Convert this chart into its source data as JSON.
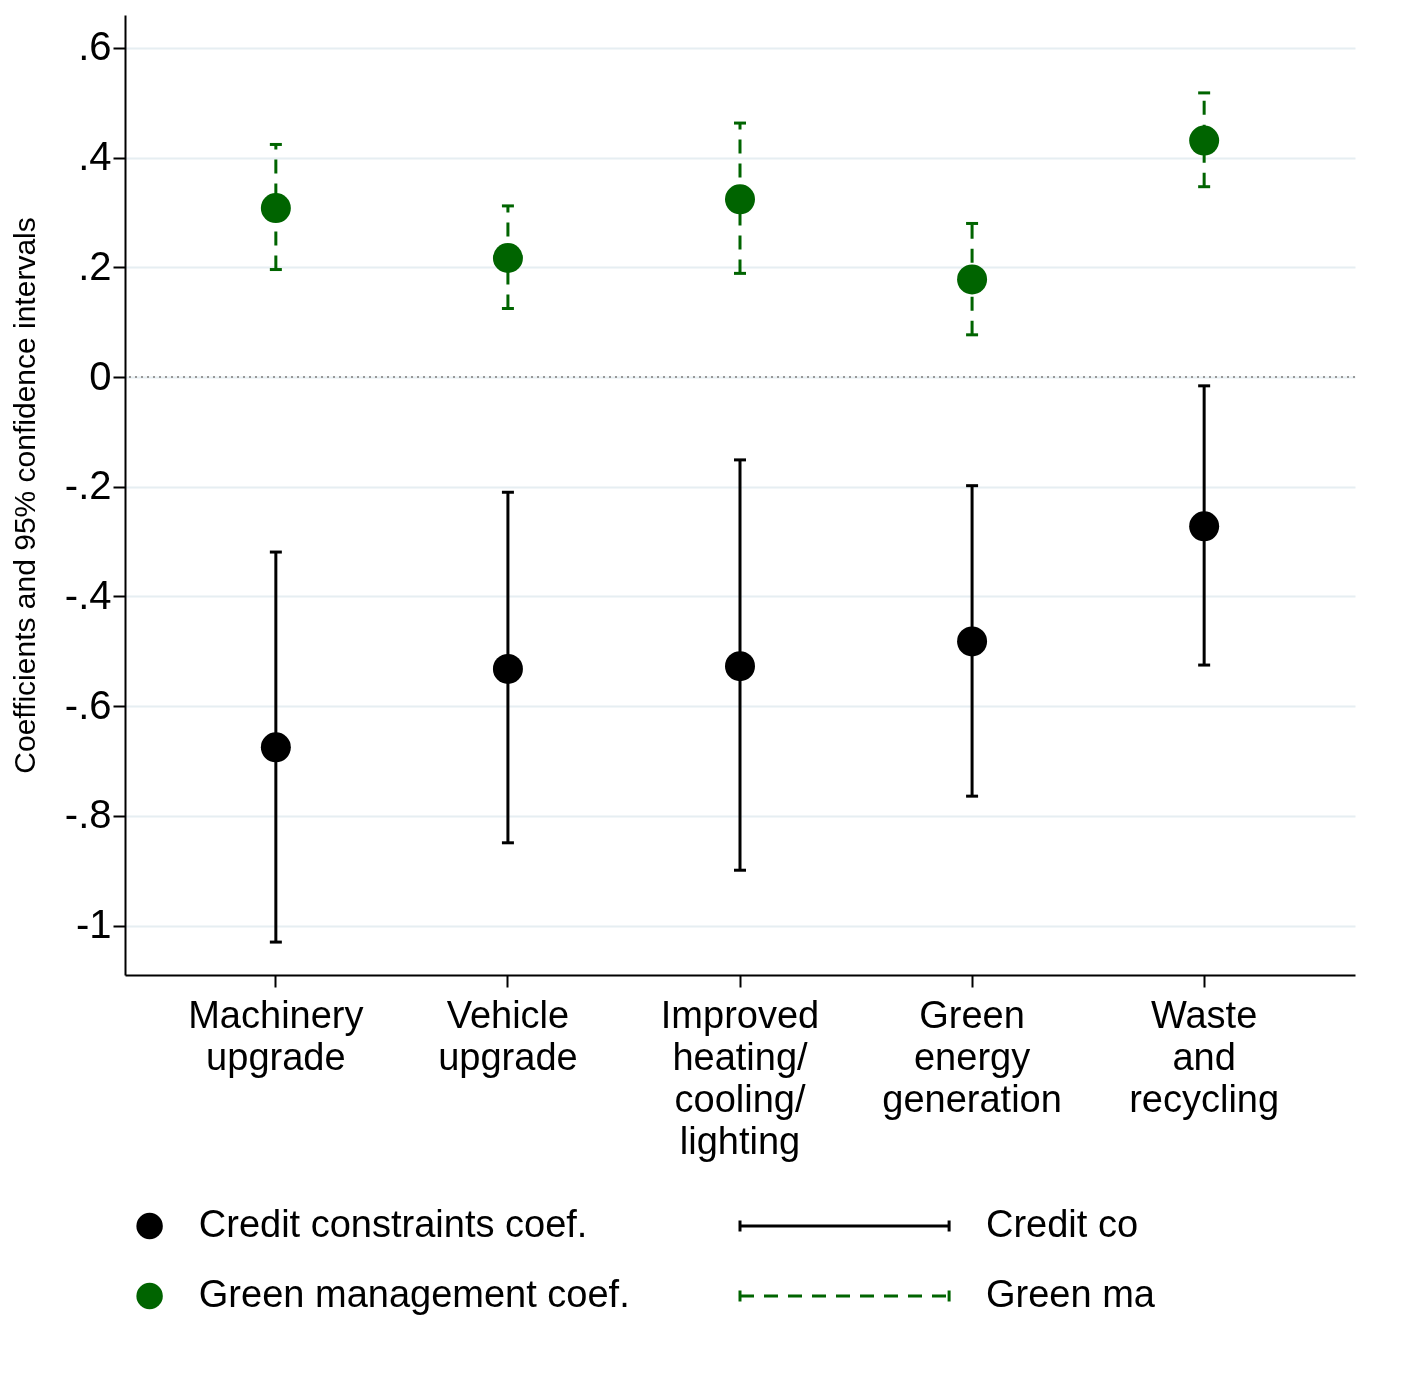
{
  "chart_data": {
    "type": "scatter",
    "ylabel": "Coefficients and 95% confidence intervals",
    "categories": [
      "Machinery upgrade",
      "Vehicle upgrade",
      "Improved heating/ cooling/ lighting",
      "Green energy generation",
      "Waste and recycling"
    ],
    "series": [
      {
        "name": "Credit constraints coef.",
        "color": "#000000",
        "line_style": "solid",
        "values": [
          -0.675,
          -0.532,
          -0.527,
          -0.482,
          -0.272
        ],
        "errors": [
          [
            -1.03,
            -0.319
          ],
          [
            -0.849,
            -0.21
          ],
          [
            -0.899,
            -0.151
          ],
          [
            -0.764,
            -0.198
          ],
          [
            -0.525,
            -0.016
          ]
        ]
      },
      {
        "name": "Green management coef.",
        "color": "#006400",
        "line_style": "dashed",
        "values": [
          0.308,
          0.217,
          0.324,
          0.178,
          0.431
        ],
        "errors": [
          [
            0.196,
            0.424
          ],
          [
            0.125,
            0.312
          ],
          [
            0.189,
            0.463
          ],
          [
            0.077,
            0.28
          ],
          [
            0.347,
            0.518
          ]
        ]
      }
    ],
    "annotations": [
      "Credit co",
      "Green ma"
    ],
    "ylim": [
      -1.09,
      0.66
    ],
    "yticks": [
      {
        "value": 0.6,
        "label": ".6"
      },
      {
        "value": 0.4,
        "label": ".4"
      },
      {
        "value": 0.2,
        "label": ".2"
      },
      0,
      {
        "value": -0.2,
        "label": "-.2"
      },
      {
        "value": -0.4,
        "label": "-.4"
      },
      {
        "value": -0.6,
        "label": "-.6"
      },
      {
        "value": -0.8,
        "label": "-.8"
      },
      -1
    ],
    "ref_lines": [
      {
        "axis": "y",
        "value": 0,
        "color": "#999999",
        "line_style": "dotted"
      }
    ],
    "grid": "y",
    "legend": "bottom",
    "marker": "circle"
  }
}
